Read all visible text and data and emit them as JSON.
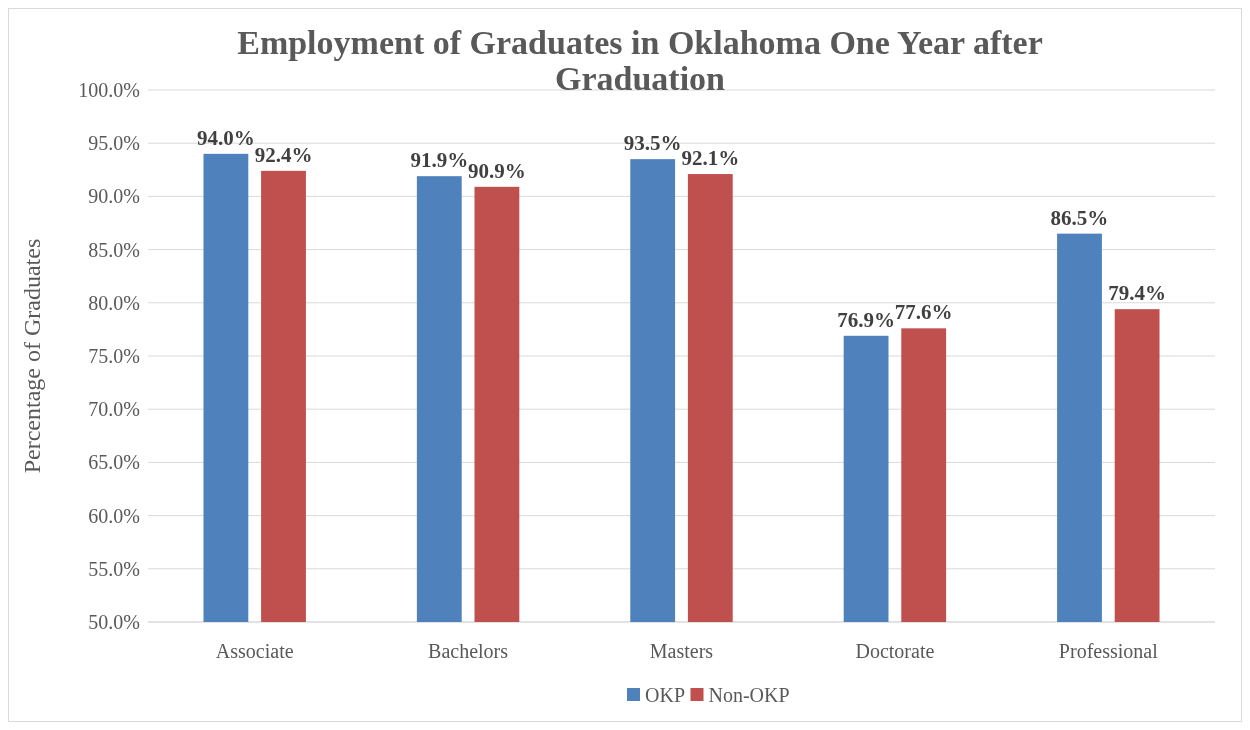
{
  "chart_data": {
    "type": "bar",
    "title": "Employment of Graduates in Oklahoma One Year after Graduation",
    "ylabel": "Percentage of Graduates",
    "categories": [
      "Associate",
      "Bachelors",
      "Masters",
      "Doctorate",
      "Professional"
    ],
    "series": [
      {
        "name": "OKP",
        "color": "#4f81bd",
        "values": [
          94.0,
          91.9,
          93.5,
          76.9,
          86.5
        ],
        "value_labels": [
          "94.0%",
          "91.9%",
          "93.5%",
          "76.9%",
          "86.5%"
        ]
      },
      {
        "name": "Non-OKP",
        "color": "#c0504d",
        "values": [
          92.4,
          90.9,
          92.1,
          77.6,
          79.4
        ],
        "value_labels": [
          "92.4%",
          "90.9%",
          "92.1%",
          "77.6%",
          "79.4%"
        ]
      }
    ],
    "ylim": [
      50,
      100
    ],
    "yticks": [
      {
        "value": 50,
        "label": "50.0%"
      },
      {
        "value": 55,
        "label": "55.0%"
      },
      {
        "value": 60,
        "label": "60.0%"
      },
      {
        "value": 65,
        "label": "65.0%"
      },
      {
        "value": 70,
        "label": "70.0%"
      },
      {
        "value": 75,
        "label": "75.0%"
      },
      {
        "value": 80,
        "label": "80.0%"
      },
      {
        "value": 85,
        "label": "85.0%"
      },
      {
        "value": 90,
        "label": "90.0%"
      },
      {
        "value": 95,
        "label": "95.0%"
      },
      {
        "value": 100,
        "label": "100.0%"
      }
    ],
    "grid": "y",
    "legend": "bottom"
  }
}
